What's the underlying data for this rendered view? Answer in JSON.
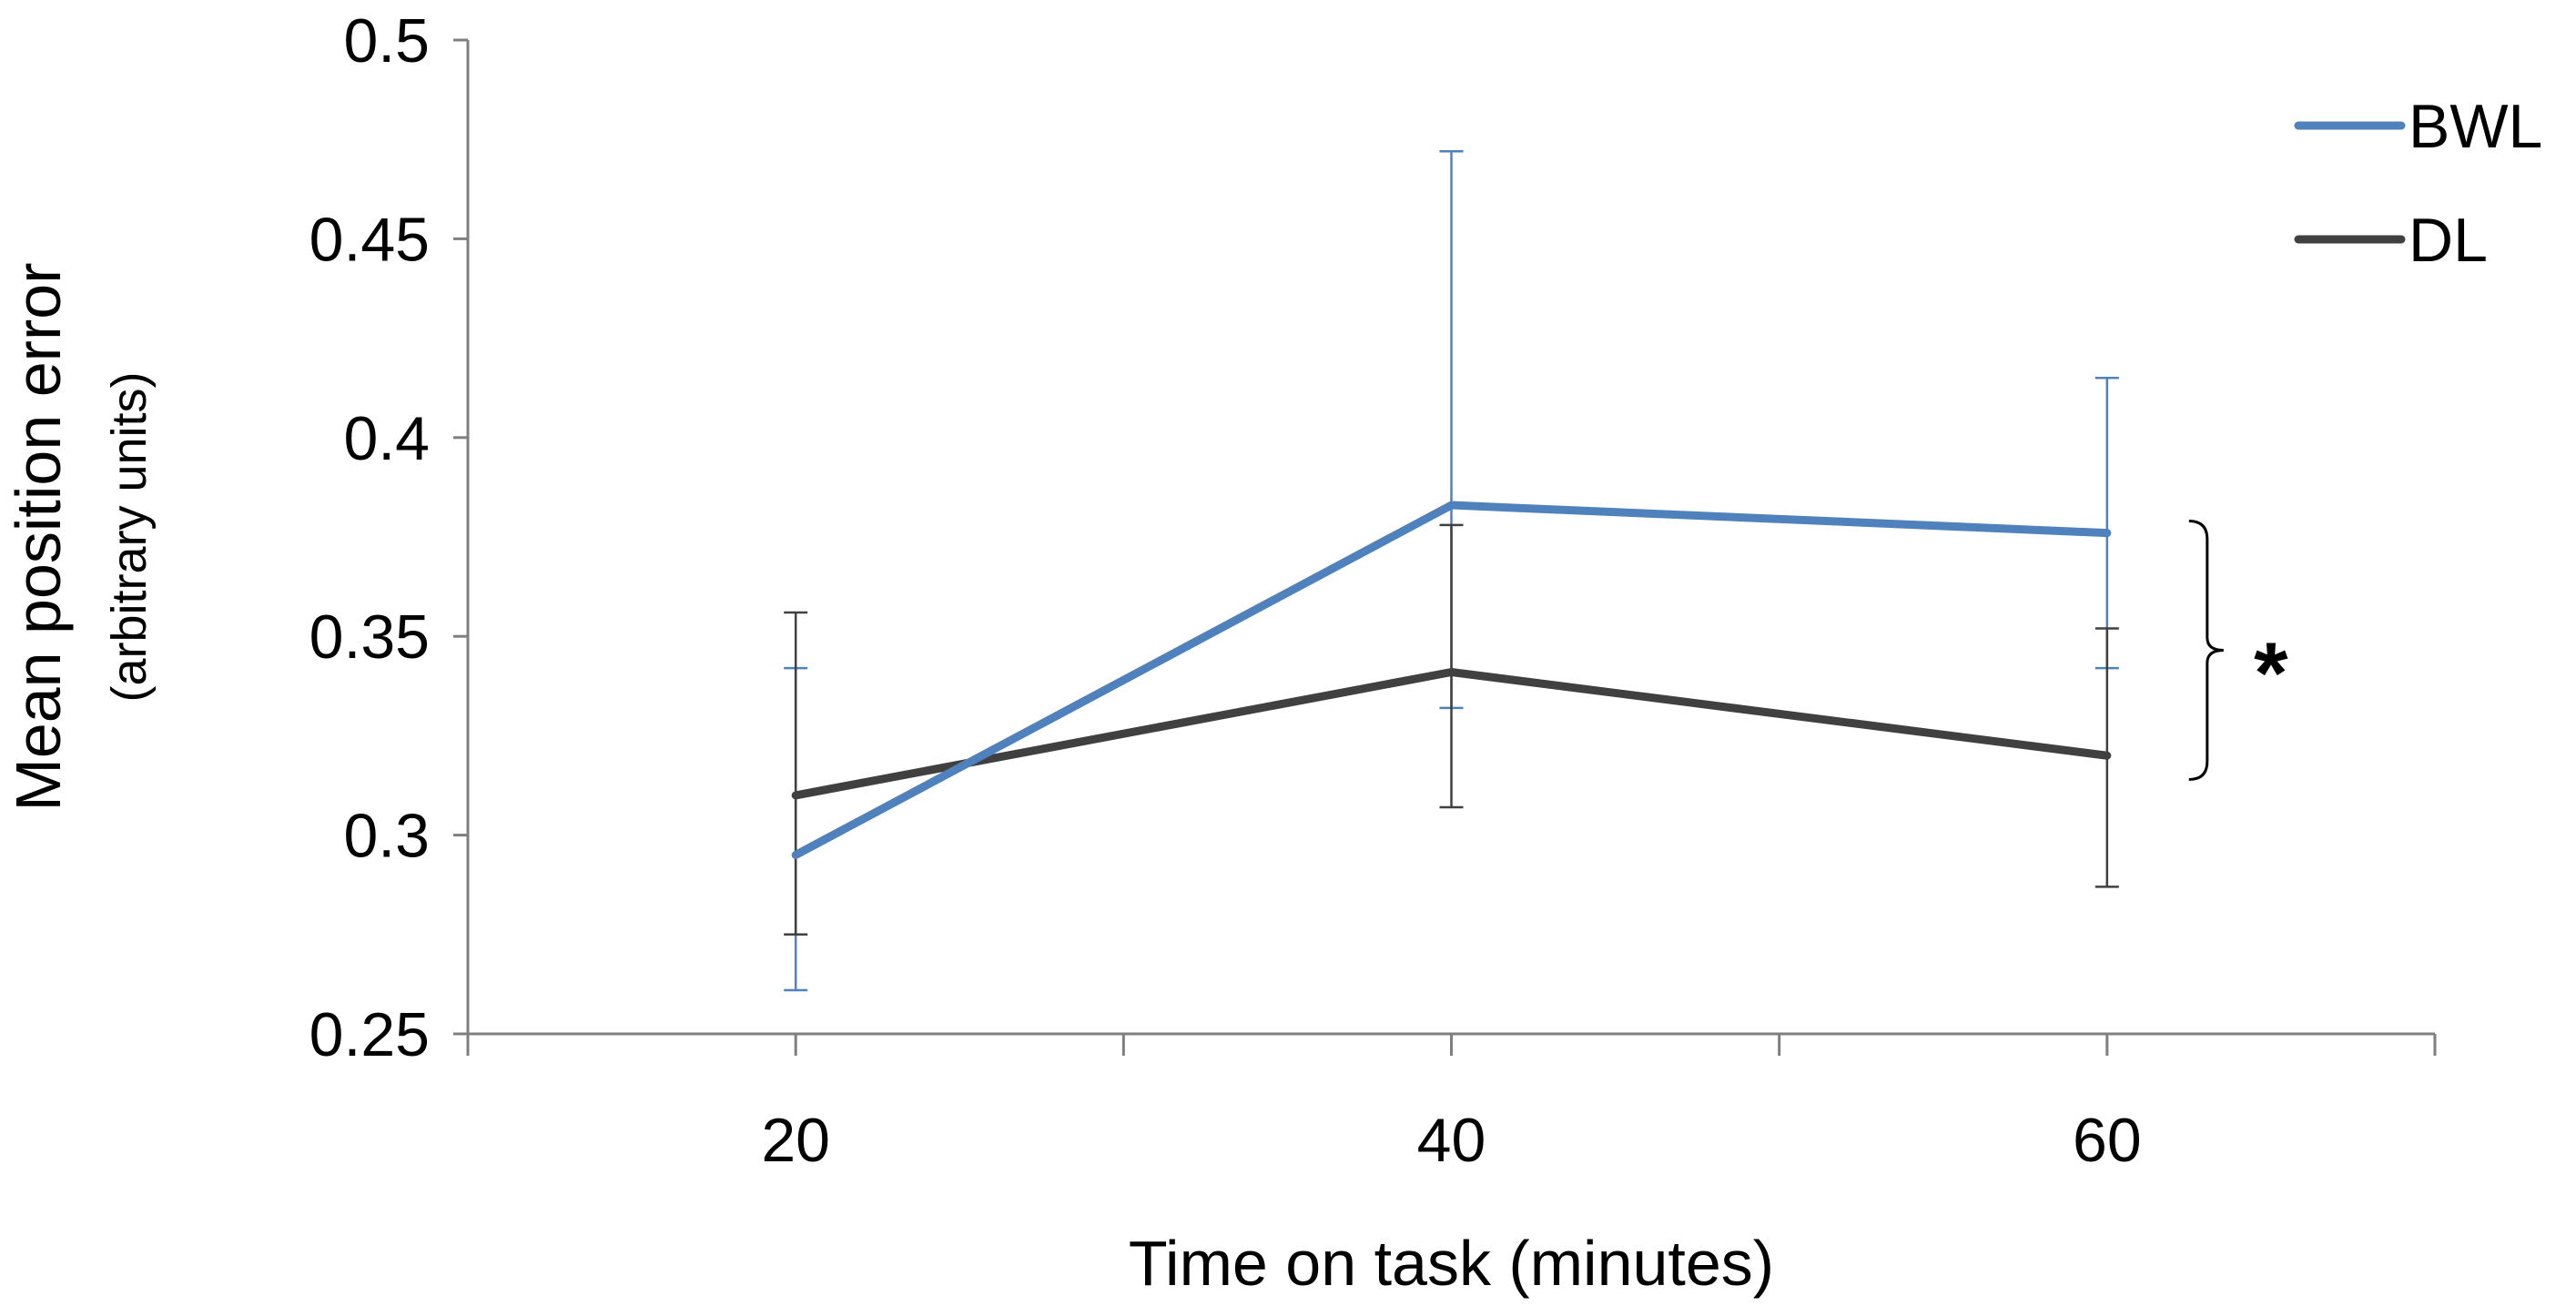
{
  "chart_data": {
    "type": "line",
    "x": [
      20,
      40,
      60
    ],
    "xlabel": "Time on task (minutes)",
    "ylabel": "Mean  position error",
    "ylabel_sub": "(arbitrary units)",
    "ylim": [
      0.25,
      0.5
    ],
    "xlim": [
      10,
      70
    ],
    "y_ticks": [
      "0.25",
      "0.3",
      "0.35",
      "0.4",
      "0.45",
      "0.5"
    ],
    "x_ticks": [
      "20",
      "40",
      "60"
    ],
    "grid": false,
    "legend_position": "top-right",
    "series": [
      {
        "name": "BWL",
        "color": "#4F81BD",
        "values": [
          0.295,
          0.383,
          0.376
        ],
        "error_low": [
          0.261,
          0.332,
          0.342
        ],
        "error_high": [
          0.342,
          0.472,
          0.415
        ]
      },
      {
        "name": "DL",
        "color": "#404040",
        "values": [
          0.31,
          0.341,
          0.32
        ],
        "error_low": [
          0.275,
          0.307,
          0.287
        ],
        "error_high": [
          0.356,
          0.378,
          0.352
        ]
      }
    ],
    "annotations": [
      {
        "text": "*",
        "type": "significance-bracket",
        "x": 60
      }
    ]
  }
}
